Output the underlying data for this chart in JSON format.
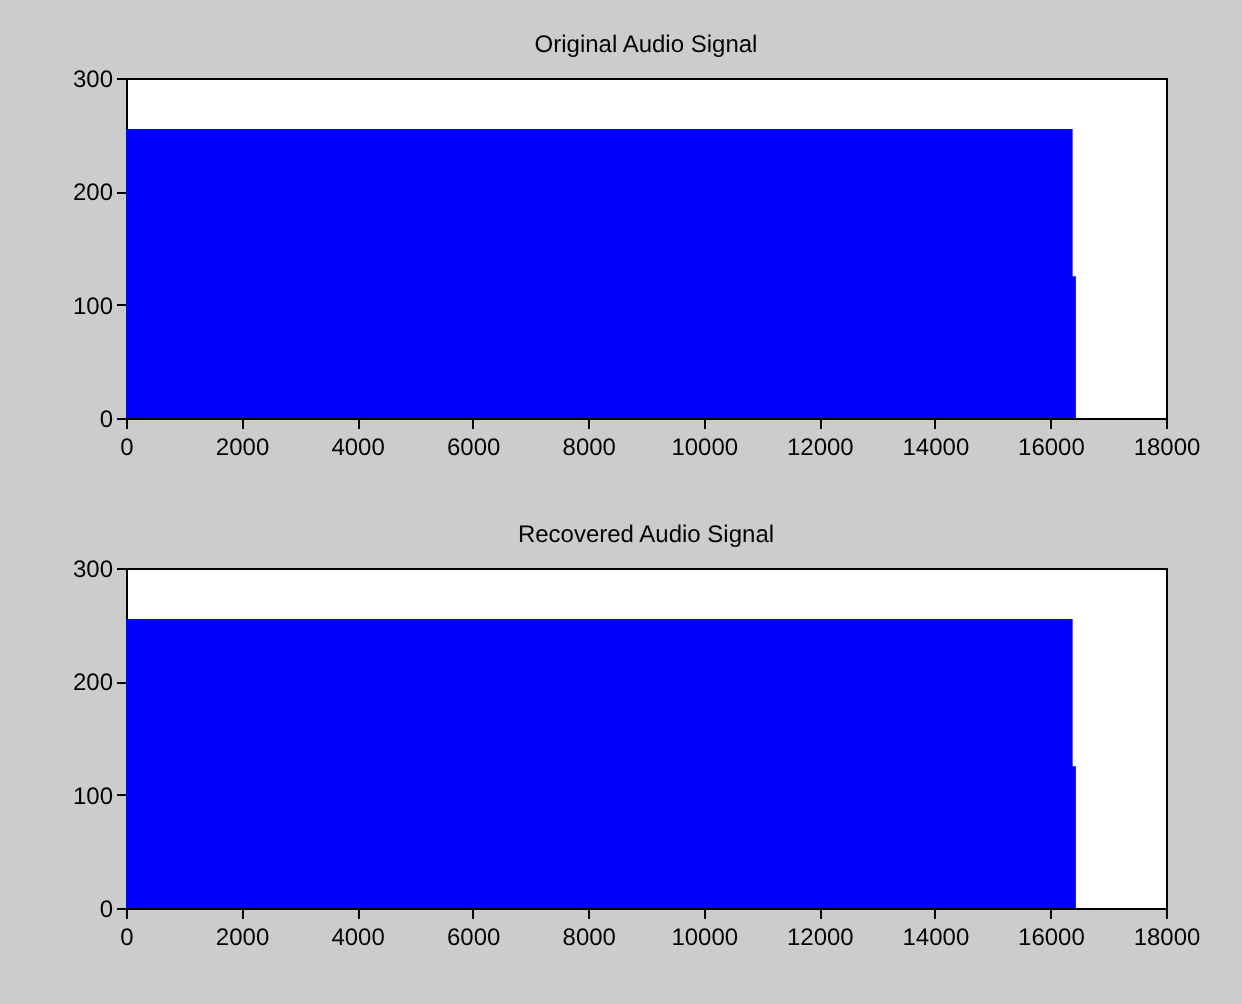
{
  "chart_data": [
    {
      "type": "area",
      "title": "Original Audio Signal",
      "x": [
        0,
        16384,
        16384,
        16440,
        16440
      ],
      "values": [
        255,
        255,
        125,
        125,
        0
      ],
      "color": "#0000ff",
      "xlim": [
        0,
        18000
      ],
      "xticks": [
        0,
        2000,
        4000,
        6000,
        8000,
        10000,
        12000,
        14000,
        16000,
        18000
      ],
      "ylim": [
        0,
        300
      ],
      "yticks": [
        0,
        100,
        200,
        300
      ]
    },
    {
      "type": "area",
      "title": "Recovered Audio Signal",
      "x": [
        0,
        16384,
        16384,
        16440,
        16440
      ],
      "values": [
        255,
        255,
        125,
        125,
        0
      ],
      "color": "#0000ff",
      "xlim": [
        0,
        18000
      ],
      "xticks": [
        0,
        2000,
        4000,
        6000,
        8000,
        10000,
        12000,
        14000,
        16000,
        18000
      ],
      "ylim": [
        0,
        300
      ],
      "yticks": [
        0,
        100,
        200,
        300
      ]
    }
  ]
}
